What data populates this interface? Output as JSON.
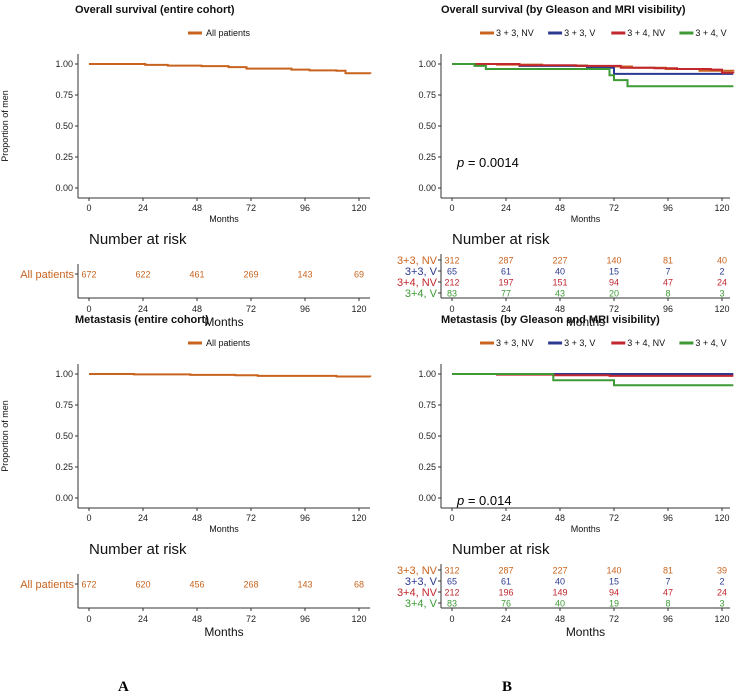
{
  "panel_labels": [
    "A",
    "B"
  ],
  "chart_data": [
    {
      "type": "line",
      "title": "Overall survival (entire cohort)",
      "ylabel": "Proportion of men",
      "xlabel": "Months",
      "xlim": [
        0,
        125
      ],
      "ylim": [
        0,
        1
      ],
      "xticks": [
        "0",
        "24",
        "48",
        "72",
        "96",
        "120"
      ],
      "yticks": [
        "0.00",
        "0.25",
        "0.50",
        "0.75",
        "1.00"
      ],
      "legend": [
        "All patients"
      ],
      "pvalue": null,
      "series": [
        {
          "name": "All patients",
          "color": "#c8641e",
          "x": [
            0,
            15,
            25,
            35,
            50,
            62,
            70,
            90,
            98,
            110,
            114,
            125
          ],
          "y": [
            1.0,
            1.0,
            0.993,
            0.987,
            0.983,
            0.975,
            0.963,
            0.955,
            0.948,
            0.945,
            0.925,
            0.92
          ]
        }
      ],
      "risk_table": {
        "title": "Number at risk",
        "xlabel": "Months",
        "xticks": [
          "0",
          "24",
          "48",
          "72",
          "96",
          "120"
        ],
        "rows": [
          {
            "label": "All patients",
            "color": "#c8641e",
            "values": [
              "672",
              "622",
              "461",
              "269",
              "143",
              "69"
            ]
          }
        ]
      }
    },
    {
      "type": "line",
      "title": "Overall survival (by Gleason and MRI visibility)",
      "ylabel": "",
      "xlabel": "Months",
      "xlim": [
        0,
        125
      ],
      "ylim": [
        0,
        1
      ],
      "xticks": [
        "0",
        "24",
        "48",
        "72",
        "96",
        "120"
      ],
      "yticks": [
        "0.00",
        "0.25",
        "0.50",
        "0.75",
        "1.00"
      ],
      "legend": [
        "3 + 3, NV",
        "3 + 3, V",
        "3 + 4, NV",
        "3 + 4, V"
      ],
      "pvalue": {
        "label": "p",
        "text": " = 0.0014"
      },
      "series": [
        {
          "name": "3 + 3, NV",
          "color": "#c8641e",
          "x": [
            0,
            20,
            40,
            60,
            80,
            95,
            110,
            125
          ],
          "y": [
            1.0,
            0.995,
            0.988,
            0.98,
            0.97,
            0.96,
            0.945,
            0.94
          ]
        },
        {
          "name": "3 + 3, V",
          "color": "#2b3990",
          "x": [
            0,
            30,
            60,
            72,
            125
          ],
          "y": [
            1.0,
            0.985,
            0.97,
            0.92,
            0.92
          ]
        },
        {
          "name": "3 + 4, NV",
          "color": "#c1272d",
          "x": [
            0,
            30,
            55,
            75,
            90,
            100,
            115,
            120,
            125
          ],
          "y": [
            1.0,
            0.99,
            0.985,
            0.97,
            0.965,
            0.96,
            0.955,
            0.93,
            0.925
          ]
        },
        {
          "name": "3 + 4, V",
          "color": "#3d9a35",
          "x": [
            0,
            10,
            15,
            45,
            70,
            72,
            78,
            125
          ],
          "y": [
            1.0,
            0.985,
            0.96,
            0.96,
            0.91,
            0.87,
            0.82,
            0.82
          ]
        }
      ],
      "risk_table": {
        "title": "Number at risk",
        "xlabel": "Months",
        "xticks": [
          "0",
          "24",
          "48",
          "72",
          "96",
          "120"
        ],
        "rows": [
          {
            "label": "3+3, NV",
            "color": "#c8641e",
            "values": [
              "312",
              "287",
              "227",
              "140",
              "81",
              "40"
            ]
          },
          {
            "label": "3+3, V",
            "color": "#2b3990",
            "values": [
              "65",
              "61",
              "40",
              "15",
              "7",
              "2"
            ]
          },
          {
            "label": "3+4, NV",
            "color": "#c1272d",
            "values": [
              "212",
              "197",
              "151",
              "94",
              "47",
              "24"
            ]
          },
          {
            "label": "3+4, V",
            "color": "#3d9a35",
            "values": [
              "83",
              "77",
              "43",
              "20",
              "8",
              "3"
            ]
          }
        ]
      }
    },
    {
      "type": "line",
      "title": "Metastasis (entire cohort)",
      "ylabel": "Proportion of men",
      "xlabel": "Months",
      "xlim": [
        0,
        125
      ],
      "ylim": [
        0,
        1
      ],
      "xticks": [
        "0",
        "24",
        "48",
        "72",
        "96",
        "120"
      ],
      "yticks": [
        "0.00",
        "0.25",
        "0.50",
        "0.75",
        "1.00"
      ],
      "legend": [
        "All patients"
      ],
      "pvalue": null,
      "series": [
        {
          "name": "All patients",
          "color": "#c8641e",
          "x": [
            0,
            20,
            45,
            65,
            75,
            110,
            125
          ],
          "y": [
            1.0,
            0.997,
            0.993,
            0.99,
            0.985,
            0.98,
            0.977
          ]
        }
      ],
      "risk_table": {
        "title": "Number at risk",
        "xlabel": "Months",
        "xticks": [
          "0",
          "24",
          "48",
          "72",
          "96",
          "120"
        ],
        "rows": [
          {
            "label": "All patients",
            "color": "#c8641e",
            "values": [
              "672",
              "620",
              "456",
              "268",
              "143",
              "68"
            ]
          }
        ]
      }
    },
    {
      "type": "line",
      "title": "Metastasis (by Gleason and MRI visibility)",
      "ylabel": "",
      "xlabel": "Months",
      "xlim": [
        0,
        125
      ],
      "ylim": [
        0,
        1
      ],
      "xticks": [
        "0",
        "24",
        "48",
        "72",
        "96",
        "120"
      ],
      "yticks": [
        "0.00",
        "0.25",
        "0.50",
        "0.75",
        "1.00"
      ],
      "legend": [
        "3 + 3, NV",
        "3 + 3, V",
        "3 + 4, NV",
        "3 + 4, V"
      ],
      "pvalue": {
        "label": "p",
        "text": " = 0.014"
      },
      "series": [
        {
          "name": "3 + 3, NV",
          "color": "#c8641e",
          "x": [
            0,
            30,
            60,
            90,
            125
          ],
          "y": [
            1.0,
            0.998,
            0.995,
            0.99,
            0.99
          ]
        },
        {
          "name": "3 + 3, V",
          "color": "#2b3990",
          "x": [
            0,
            125
          ],
          "y": [
            1.0,
            1.0
          ]
        },
        {
          "name": "3 + 4, NV",
          "color": "#c1272d",
          "x": [
            0,
            20,
            45,
            70,
            125
          ],
          "y": [
            1.0,
            0.995,
            0.99,
            0.985,
            0.985
          ]
        },
        {
          "name": "3 + 4, V",
          "color": "#3d9a35",
          "x": [
            0,
            10,
            45,
            72,
            125
          ],
          "y": [
            1.0,
            1.0,
            0.95,
            0.91,
            0.91
          ]
        }
      ],
      "risk_table": {
        "title": "Number at risk",
        "xlabel": "Months",
        "xticks": [
          "0",
          "24",
          "48",
          "72",
          "96",
          "120"
        ],
        "rows": [
          {
            "label": "3+3, NV",
            "color": "#c8641e",
            "values": [
              "312",
              "287",
              "227",
              "140",
              "81",
              "39"
            ]
          },
          {
            "label": "3+3, V",
            "color": "#2b3990",
            "values": [
              "65",
              "61",
              "40",
              "15",
              "7",
              "2"
            ]
          },
          {
            "label": "3+4, NV",
            "color": "#c1272d",
            "values": [
              "212",
              "196",
              "149",
              "94",
              "47",
              "24"
            ]
          },
          {
            "label": "3+4, V",
            "color": "#3d9a35",
            "values": [
              "83",
              "76",
              "40",
              "19",
              "8",
              "3"
            ]
          }
        ]
      }
    }
  ]
}
